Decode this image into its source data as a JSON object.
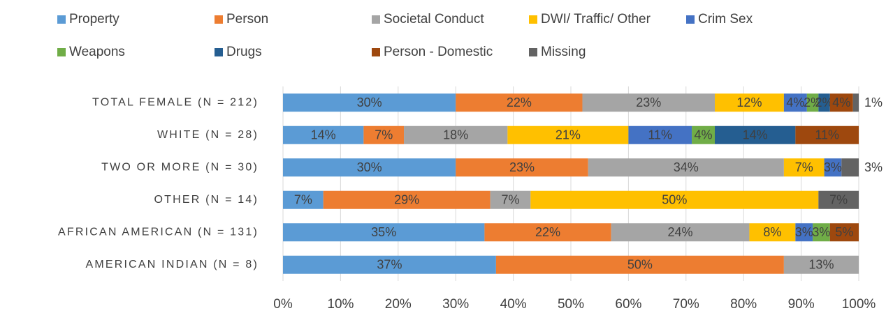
{
  "chart_data": {
    "type": "stacked-bar-horizontal",
    "categories": [
      "TOTAL FEMALE (N = 212)",
      "WHITE (N = 28)",
      "TWO OR MORE (N = 30)",
      "OTHER (N = 14)",
      "AFRICAN AMERICAN (N = 131)",
      "AMERICAN INDIAN (N = 8)"
    ],
    "series": [
      {
        "name": "Property",
        "color": "#5b9bd5",
        "values": [
          30,
          14,
          30,
          7,
          35,
          37
        ],
        "value_labels": [
          "30%",
          "14%",
          "30%",
          "7%",
          "35%",
          "37%"
        ]
      },
      {
        "name": "Person",
        "color": "#ed7d31",
        "values": [
          22,
          7,
          23,
          29,
          22,
          50
        ],
        "value_labels": [
          "22%",
          "7%",
          "23%",
          "29%",
          "22%",
          "50%"
        ]
      },
      {
        "name": "Societal Conduct",
        "color": "#a5a5a5",
        "values": [
          23,
          18,
          34,
          7,
          24,
          13
        ],
        "value_labels": [
          "23%",
          "18%",
          "34%",
          "7%",
          "24%",
          "13%"
        ]
      },
      {
        "name": "DWI/ Traffic/ Other",
        "color": "#ffc000",
        "values": [
          12,
          21,
          7,
          50,
          8,
          0
        ],
        "value_labels": [
          "12%",
          "21%",
          "7%",
          "50%",
          "8%",
          null
        ]
      },
      {
        "name": "Crim Sex",
        "color": "#4472c4",
        "values": [
          4,
          11,
          3,
          0,
          3,
          0
        ],
        "value_labels": [
          "4%",
          "11%",
          "3%",
          null,
          "3%",
          null
        ]
      },
      {
        "name": "Weapons",
        "color": "#70ad47",
        "values": [
          2,
          4,
          0,
          0,
          3,
          0
        ],
        "value_labels": [
          "2%",
          "4%",
          null,
          null,
          "3%",
          null
        ]
      },
      {
        "name": "Drugs",
        "color": "#255e91",
        "values": [
          2,
          14,
          0,
          0,
          0,
          0
        ],
        "value_labels": [
          "2%",
          "14%",
          null,
          null,
          null,
          null
        ]
      },
      {
        "name": "Person - Domestic",
        "color": "#9e480e",
        "values": [
          4,
          11,
          0,
          0,
          5,
          0
        ],
        "value_labels": [
          "4%",
          "11%",
          null,
          null,
          "5%",
          null
        ]
      },
      {
        "name": "Missing",
        "color": "#636363",
        "values": [
          1,
          0,
          3,
          7,
          0,
          0
        ],
        "value_labels": [
          "1%",
          null,
          "3%",
          "7%",
          null,
          null
        ]
      }
    ],
    "xlim": [
      0,
      100
    ],
    "xticks": [
      {
        "value": 0,
        "label": "0%"
      },
      {
        "value": 10,
        "label": "10%"
      },
      {
        "value": 20,
        "label": "20%"
      },
      {
        "value": 30,
        "label": "30%"
      },
      {
        "value": 40,
        "label": "40%"
      },
      {
        "value": 50,
        "label": "50%"
      },
      {
        "value": 60,
        "label": "60%"
      },
      {
        "value": 70,
        "label": "70%"
      },
      {
        "value": 80,
        "label": "80%"
      },
      {
        "value": 90,
        "label": "90%"
      },
      {
        "value": 100,
        "label": "100%"
      }
    ],
    "grid": true,
    "legend": "top"
  }
}
